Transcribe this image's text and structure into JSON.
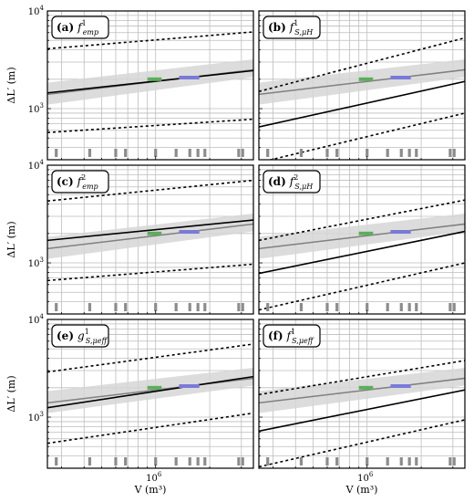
{
  "chart_data": {
    "type": "line",
    "xlabel": "V (m³)",
    "ylabel": "ΔL′ (m)",
    "xscale": "log",
    "yscale": "log",
    "xlim": [
      250000,
      3500000
    ],
    "ylim": [
      300,
      10000
    ],
    "x_ticks": [
      {
        "value": 1000000,
        "base": "10",
        "exp": "6"
      }
    ],
    "y_ticks": [
      {
        "value": 1000,
        "base": "10",
        "exp": "3"
      },
      {
        "value": 10000,
        "base": "10",
        "exp": "4"
      }
    ],
    "grid": true,
    "rug_x": [
      280000,
      430000,
      600000,
      680000,
      1000000,
      1300000,
      1550000,
      1720000,
      1880000,
      2900000,
      3050000
    ],
    "observations": [
      {
        "color": "#5cae5c",
        "x": [
          900000,
          1080000
        ],
        "y": 2000
      },
      {
        "color": "#7a7ad8",
        "x": [
          1350000,
          1750000
        ],
        "y": 2080
      }
    ],
    "reference_fit": {
      "color": "#808080",
      "band_color": "#d6d6d6",
      "x": [
        250000,
        3500000
      ],
      "y": [
        1400,
        2500
      ],
      "band_low": [
        1100,
        2100
      ],
      "band_high": [
        1850,
        3200
      ]
    },
    "panels": [
      {
        "label": "(a)",
        "sym": "f",
        "sup": "1",
        "sub": "emp",
        "fit": [
          1450,
          2450
        ],
        "low": [
          570,
          780
        ],
        "high": [
          4100,
          6100
        ]
      },
      {
        "label": "(b)",
        "sym": "f",
        "sup": "1",
        "sub": "S,μH",
        "fit": [
          650,
          1900
        ],
        "low": [
          280,
          900
        ],
        "high": [
          1500,
          5300
        ]
      },
      {
        "label": "(c)",
        "sym": "f",
        "sup": "2",
        "sub": "emp",
        "fit": [
          1700,
          2750
        ],
        "low": [
          660,
          970
        ],
        "high": [
          4300,
          7000
        ]
      },
      {
        "label": "(d)",
        "sym": "f",
        "sup": "2",
        "sub": "S,μH",
        "fit": [
          780,
          2100
        ],
        "low": [
          330,
          1000
        ],
        "high": [
          1700,
          4400
        ]
      },
      {
        "label": "(e)",
        "sym": "g",
        "sup": "1",
        "sub": "S,μeff",
        "fit": [
          1250,
          2600
        ],
        "low": [
          540,
          1100
        ],
        "high": [
          2900,
          5600
        ]
      },
      {
        "label": "(f)",
        "sym": "f",
        "sup": "1",
        "sub": "S,μeff",
        "fit": [
          720,
          1900
        ],
        "low": [
          310,
          940
        ],
        "high": [
          1700,
          3800
        ]
      }
    ]
  }
}
